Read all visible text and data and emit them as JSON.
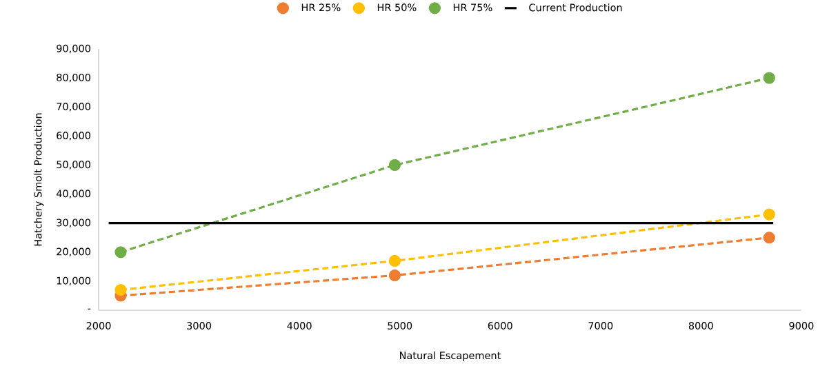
{
  "chart_data": {
    "type": "line",
    "xlabel": "Natural Escapement",
    "ylabel": "Hatchery Smolt Production",
    "xlim": [
      2000,
      9000
    ],
    "xticks": [
      2000,
      3000,
      4000,
      5000,
      6000,
      7000,
      8000,
      9000
    ],
    "ylim": [
      0,
      90000
    ],
    "yticks": [
      {
        "value": 0,
        "label": "-"
      },
      {
        "value": 10000,
        "label": "10,000"
      },
      {
        "value": 20000,
        "label": "20,000"
      },
      {
        "value": 30000,
        "label": "30,000"
      },
      {
        "value": 40000,
        "label": "40,000"
      },
      {
        "value": 50000,
        "label": "50,000"
      },
      {
        "value": 60000,
        "label": "60,000"
      },
      {
        "value": 70000,
        "label": "70,000"
      },
      {
        "value": 80000,
        "label": "80,000"
      },
      {
        "value": 90000,
        "label": "90,000"
      }
    ],
    "x": [
      2220,
      4950,
      8680
    ],
    "series": [
      {
        "name": "HR 25%",
        "color": "#ed7d31",
        "values": [
          5000,
          12000,
          25000
        ],
        "marker": "circle",
        "line_style": "dashed"
      },
      {
        "name": "HR 50%",
        "color": "#ffc000",
        "values": [
          7000,
          17000,
          33000
        ],
        "marker": "circle",
        "line_style": "dashed"
      },
      {
        "name": "HR 75%",
        "color": "#70ad47",
        "values": [
          20000,
          50000,
          80000
        ],
        "marker": "circle",
        "line_style": "dashed"
      },
      {
        "name": "Current Production",
        "color": "#000000",
        "x": [
          2100,
          8720
        ],
        "values": [
          30000,
          30000
        ],
        "marker": "none",
        "line_style": "solid"
      }
    ],
    "grid": false,
    "legend": "top"
  }
}
